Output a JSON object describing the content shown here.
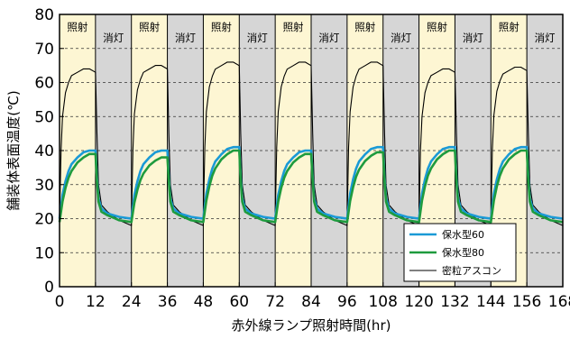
{
  "chart_data": {
    "type": "line",
    "xlabel": "赤外線ランプ照射時間(hr)",
    "ylabel": "舗装体表面温度(℃)",
    "xlim": [
      0,
      168
    ],
    "ylim": [
      0,
      80
    ],
    "x_ticks": [
      0,
      12,
      24,
      36,
      48,
      60,
      72,
      84,
      96,
      108,
      120,
      132,
      144,
      156,
      168
    ],
    "y_ticks": [
      0,
      10,
      20,
      30,
      40,
      50,
      60,
      70,
      80
    ],
    "grid": "horizontal dashed",
    "legend_position": "bottom-right",
    "periods": [
      {
        "label": "照射",
        "start": 0,
        "end": 12,
        "color": "#fdf6d3"
      },
      {
        "label": "消灯",
        "start": 12,
        "end": 24,
        "color": "#d6d6d6"
      },
      {
        "label": "照射",
        "start": 24,
        "end": 36,
        "color": "#fdf6d3"
      },
      {
        "label": "消灯",
        "start": 36,
        "end": 48,
        "color": "#d6d6d6"
      },
      {
        "label": "照射",
        "start": 48,
        "end": 60,
        "color": "#fdf6d3"
      },
      {
        "label": "消灯",
        "start": 60,
        "end": 72,
        "color": "#d6d6d6"
      },
      {
        "label": "照射",
        "start": 72,
        "end": 84,
        "color": "#fdf6d3"
      },
      {
        "label": "消灯",
        "start": 84,
        "end": 96,
        "color": "#d6d6d6"
      },
      {
        "label": "照射",
        "start": 96,
        "end": 108,
        "color": "#fdf6d3"
      },
      {
        "label": "消灯",
        "start": 108,
        "end": 120,
        "color": "#d6d6d6"
      },
      {
        "label": "照射",
        "start": 120,
        "end": 132,
        "color": "#fdf6d3"
      },
      {
        "label": "消灯",
        "start": 132,
        "end": 144,
        "color": "#d6d6d6"
      },
      {
        "label": "照射",
        "start": 144,
        "end": 156,
        "color": "#fdf6d3"
      },
      {
        "label": "消灯",
        "start": 156,
        "end": 168,
        "color": "#d6d6d6"
      }
    ],
    "series": [
      {
        "name": "保水型60",
        "color": "#1a9ad6",
        "cycle_peak": 40.0,
        "cycle_start": 20.0,
        "cycle_end": 20.0,
        "off_drop_to": 22.0,
        "rise_rate": 0.35,
        "x": [
          0,
          1,
          2,
          3,
          4,
          6,
          8,
          10,
          12,
          12.5,
          13,
          14,
          16,
          20,
          24
        ],
        "y": [
          20,
          27,
          31,
          34,
          36,
          38,
          39.5,
          40,
          40,
          32,
          26,
          23,
          21.5,
          20.5,
          20
        ]
      },
      {
        "name": "保水型80",
        "color": "#1e9b3e",
        "cycle_peak": 39.0,
        "cycle_start": 19.0,
        "cycle_end": 19.0,
        "off_drop_to": 22.0,
        "rise_rate": 0.32,
        "x": [
          0,
          1,
          2,
          3,
          4,
          6,
          8,
          10,
          12,
          12.5,
          13,
          14,
          16,
          20,
          24
        ],
        "y": [
          19,
          25,
          29,
          32,
          34,
          36.5,
          38,
          39,
          39,
          31,
          25,
          22,
          21,
          19.5,
          19
        ]
      },
      {
        "name": "密粒アスコン",
        "color": "#000000",
        "cycle_peak": 64.0,
        "cycle_start": 19.0,
        "cycle_end": 18.0,
        "off_drop_to": 22.0,
        "rise_rate": 0.55,
        "x": [
          0,
          0.5,
          1,
          2,
          3,
          4,
          6,
          8,
          10,
          12,
          12.5,
          13,
          14,
          16,
          20,
          24
        ],
        "y": [
          19,
          40,
          50,
          57,
          60,
          62,
          63,
          64,
          64,
          63,
          45,
          30,
          24,
          22,
          19.5,
          18
        ]
      }
    ],
    "cycle_peaks": {
      "保水型60": [
        40,
        40,
        41,
        40,
        41,
        41,
        41
      ],
      "保水型80": [
        39,
        38,
        40,
        39,
        39.5,
        40,
        40
      ],
      "密粒アスコン": [
        64,
        65,
        66,
        66,
        66,
        64,
        64.5
      ]
    }
  }
}
